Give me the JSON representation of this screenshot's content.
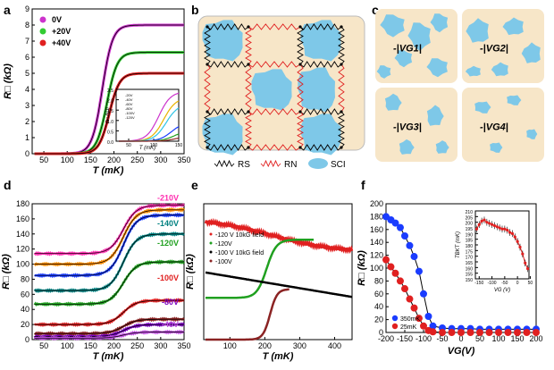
{
  "panels": {
    "a": {
      "label": "a"
    },
    "b": {
      "label": "b"
    },
    "c": {
      "label": "c"
    },
    "d": {
      "label": "d"
    },
    "e": {
      "label": "e"
    },
    "f": {
      "label": "f"
    }
  },
  "colors": {
    "magenta": "#cc33cc",
    "green": "#33cc33",
    "red": "#e02020",
    "blue": "#1a3cff",
    "cyan": "#2ec4e6",
    "brown": "#8b2323",
    "black": "#000000",
    "sci": "#7ec8e8",
    "bg": "#f7e6c8"
  },
  "chart_data": [
    {
      "id": "a",
      "type": "line",
      "xlabel": "T (mK)",
      "ylabel": "R□ (kΩ)",
      "xlim": [
        25,
        350
      ],
      "ylim": [
        0,
        9
      ],
      "xticks": [
        50,
        100,
        150,
        200,
        250,
        300,
        350
      ],
      "yticks": [
        0,
        1,
        2,
        3,
        4,
        5,
        6,
        7,
        8,
        9
      ],
      "legend": [
        "0V",
        "+20V",
        "+40V"
      ],
      "series": [
        {
          "name": "0V",
          "plateau": 8.0,
          "Tc": 175
        },
        {
          "name": "+20V",
          "plateau": 6.3,
          "Tc": 185
        },
        {
          "name": "+40V",
          "plateau": 5.0,
          "Tc": 190
        }
      ],
      "inset": {
        "xlabel": "T (mK)",
        "ylabel": "R□ (kΩ)",
        "xticks": [
          50,
          100,
          150
        ],
        "yticks": [
          0.0,
          0.5,
          1.0,
          1.5,
          2.0,
          2.5
        ],
        "legend": [
          "-20V",
          "-40V",
          "-60V",
          "-80V",
          "-100V",
          "-120V"
        ]
      }
    },
    {
      "id": "b",
      "type": "diagram",
      "legend": [
        "RS",
        "RN",
        "SCI"
      ]
    },
    {
      "id": "c",
      "type": "diagram",
      "labels": [
        "-|VG1|",
        "-|VG2|",
        "-|VG3|",
        "-|VG4|"
      ]
    },
    {
      "id": "d",
      "type": "line",
      "xlabel": "T (mK)",
      "ylabel": "R□ (kΩ)",
      "xlim": [
        25,
        350
      ],
      "ylim": [
        0,
        180
      ],
      "xticks": [
        50,
        100,
        150,
        200,
        250,
        300,
        350
      ],
      "yticks": [
        0,
        20,
        40,
        60,
        80,
        100,
        120,
        140,
        160,
        180
      ],
      "annotations": [
        "-210V",
        "-140V",
        "-120V",
        "-100V",
        "-80V",
        "-40V"
      ],
      "series": [
        {
          "color": "magenta",
          "lo": 114,
          "hi": 178
        },
        {
          "color": "orange",
          "lo": 100,
          "hi": 172
        },
        {
          "color": "blue",
          "lo": 85,
          "hi": 165
        },
        {
          "color": "teal",
          "lo": 65,
          "hi": 140
        },
        {
          "color": "green",
          "lo": 47,
          "hi": 103
        },
        {
          "color": "red",
          "lo": 20,
          "hi": 52
        },
        {
          "color": "brown",
          "lo": 8,
          "hi": 27
        },
        {
          "color": "purple",
          "lo": 4,
          "hi": 20
        },
        {
          "color": "violet",
          "lo": 2,
          "hi": 10
        }
      ]
    },
    {
      "id": "e",
      "type": "line",
      "xlabel": "T (mK)",
      "ylabel": "R□ (kΩ)",
      "xlim": [
        25,
        450
      ],
      "xticks": [
        100,
        200,
        300,
        400
      ],
      "legend": [
        "-120 V 10kG field",
        "-120V",
        "-100 V 10kG field",
        "-100V"
      ]
    },
    {
      "id": "f",
      "type": "line",
      "xlabel": "VG(V)",
      "ylabel": "R□ (kΩ)",
      "xlim": [
        -200,
        200
      ],
      "ylim": [
        0,
        200
      ],
      "xticks": [
        -200,
        -150,
        -100,
        -50,
        0,
        50,
        100,
        150,
        200
      ],
      "yticks": [
        0,
        20,
        40,
        60,
        80,
        100,
        120,
        140,
        160,
        180,
        200
      ],
      "legend": [
        "350mK",
        "25mK"
      ],
      "series": [
        {
          "name": "350mK",
          "x": [
            -200,
            -187,
            -175,
            -162,
            -150,
            -137,
            -125,
            -112,
            -100,
            -87,
            -75,
            -50,
            -25,
            0,
            25,
            50,
            75,
            100,
            125,
            150,
            175,
            200
          ],
          "y": [
            180,
            175,
            170,
            163,
            150,
            135,
            118,
            95,
            60,
            25,
            10,
            7,
            6,
            6,
            6,
            5,
            5,
            5,
            5,
            5,
            5,
            5
          ]
        },
        {
          "name": "25mK",
          "x": [
            -200,
            -187,
            -175,
            -162,
            -150,
            -137,
            -125,
            -112,
            -100,
            -87,
            -75,
            -50,
            -25,
            0,
            25,
            50,
            75,
            100,
            125,
            150,
            175,
            200
          ],
          "y": [
            113,
            102,
            92,
            80,
            68,
            52,
            38,
            22,
            10,
            3,
            1,
            0,
            0,
            0,
            0,
            0,
            0,
            0,
            0,
            0,
            0,
            0
          ]
        }
      ],
      "inset": {
        "xlabel": "VG (V)",
        "ylabel": "TBKT (mK)",
        "xticks": [
          -150,
          -100,
          -50,
          0,
          50
        ],
        "yticks": [
          150,
          155,
          160,
          165,
          170,
          175,
          180,
          185,
          190,
          195,
          200,
          205,
          210
        ],
        "x": [
          -160,
          -150,
          -140,
          -130,
          -120,
          -110,
          -100,
          -90,
          -80,
          -70,
          -60,
          -50,
          -40,
          -30,
          -20,
          -10,
          0,
          10,
          20,
          30,
          40
        ],
        "y": [
          194,
          198,
          201,
          202,
          200,
          199,
          198,
          197,
          196,
          195,
          194,
          194,
          193,
          191,
          190,
          187,
          183,
          178,
          172,
          164,
          159
        ]
      }
    }
  ]
}
